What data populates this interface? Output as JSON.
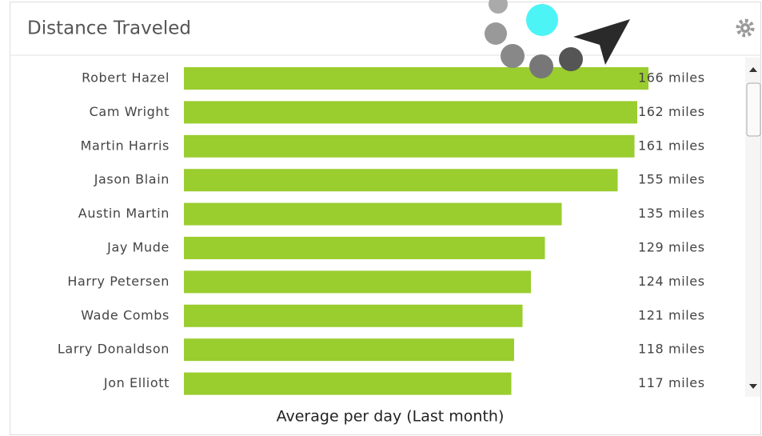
{
  "chart_data": {
    "type": "bar",
    "orientation": "horizontal",
    "title": "Distance Traveled",
    "x_label": "Average per day (Last month)",
    "categories": [
      "Robert Hazel",
      "Cam Wright",
      "Martin Harris",
      "Jason Blain",
      "Austin Martin",
      "Jay Mude",
      "Harry Petersen",
      "Wade Combs",
      "Larry Donaldson",
      "Jon Elliott"
    ],
    "values": [
      166,
      162,
      161,
      155,
      135,
      129,
      124,
      121,
      118,
      117
    ],
    "value_labels": [
      "166 miles",
      "162 miles",
      "161 miles",
      "155 miles",
      "135 miles",
      "129 miles",
      "124 miles",
      "121 miles",
      "118 miles",
      "117 miles"
    ],
    "color": "#9acd2e"
  }
}
